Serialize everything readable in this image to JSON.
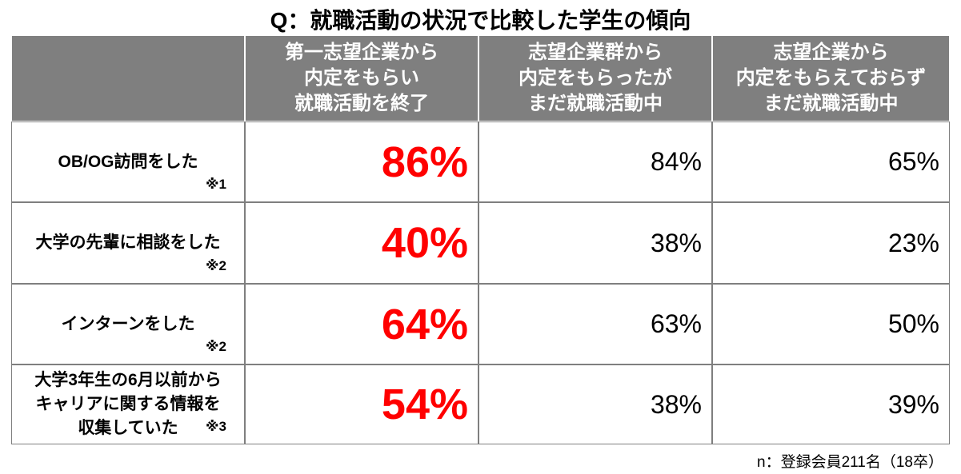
{
  "title": "Q：就職活動の状況で比較した学生の傾向",
  "table": {
    "header": [
      [],
      [
        "第一志望企業から",
        "内定をもらい",
        "就職活動を終了"
      ],
      [
        "志望企業群から",
        "内定をもらったが",
        "まだ就職活動中"
      ],
      [
        "志望企業から",
        "内定をもらえておらず",
        "まだ就職活動中"
      ]
    ],
    "rows": [
      {
        "label": [
          "OB/OG訪問をした"
        ],
        "note": "※1",
        "values": [
          "86%",
          "84%",
          "65%"
        ]
      },
      {
        "label": [
          "大学の先輩に相談をした"
        ],
        "note": "※2",
        "values": [
          "40%",
          "38%",
          "23%"
        ]
      },
      {
        "label": [
          "インターンをした"
        ],
        "note": "※2",
        "values": [
          "64%",
          "63%",
          "50%"
        ]
      },
      {
        "label": [
          "大学3年生の6月以前から",
          "キャリアに関する情報を",
          "収集していた"
        ],
        "note": "※3",
        "values": [
          "54%",
          "38%",
          "39%"
        ]
      }
    ]
  },
  "footnote": "n：登録会員211名（18卒）"
}
